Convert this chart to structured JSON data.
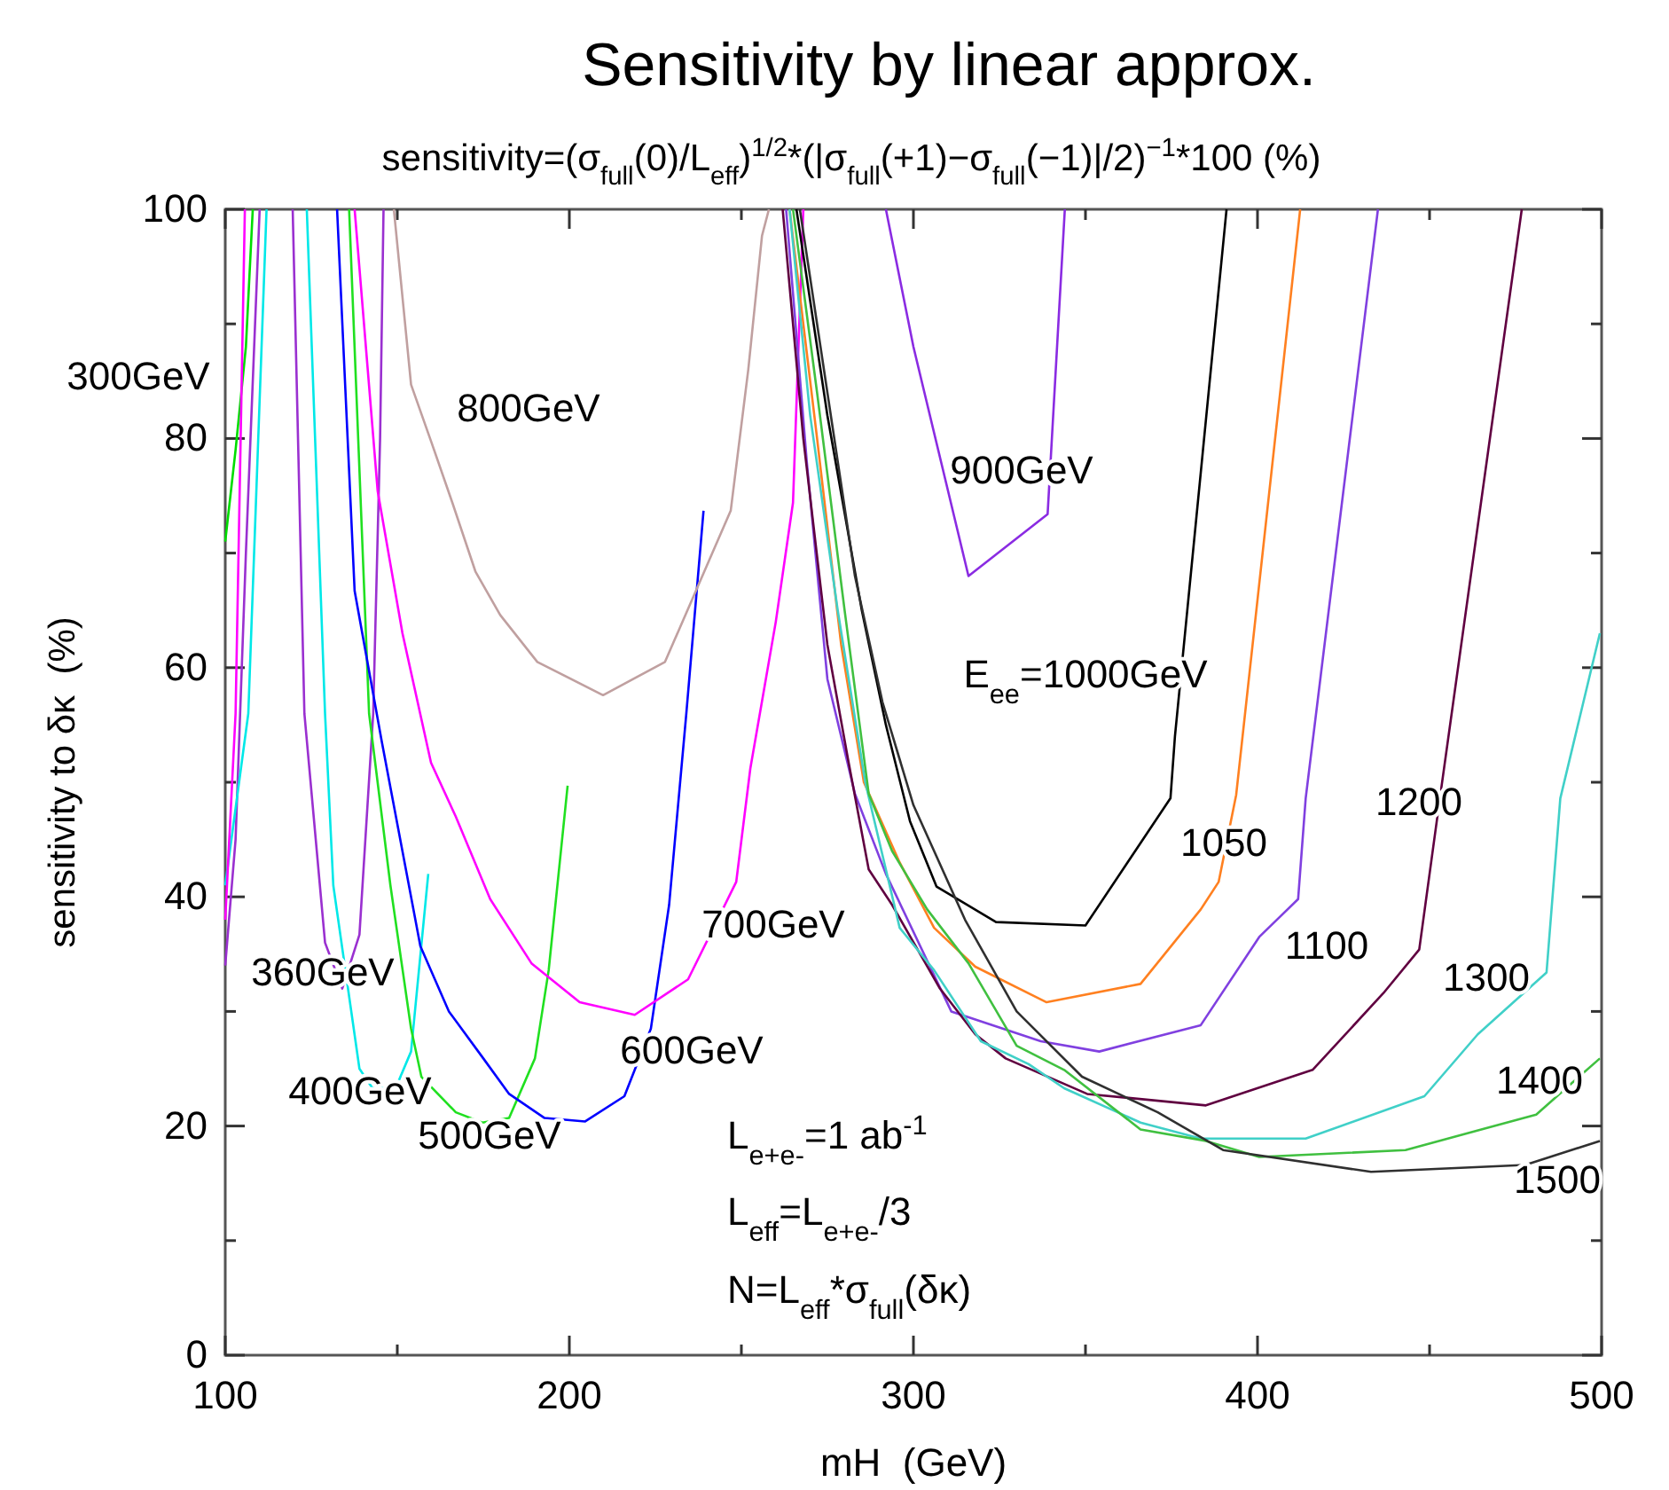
{
  "chart_data": {
    "type": "line",
    "title": "Sensitivity by linear approx.",
    "subtitle": "sensitivity=(σ$_{full}$(0)/L$_{eff}$)$^{1/2}$*(|σ$_{full}$(+1)−σ$_{full}$(−1)|/2)$^{−1}$*100 (%)",
    "xlabel": "mH  (GeV)",
    "ylabel": "sensitivity to δκ  (%)",
    "xlim": [
      100,
      500
    ],
    "ylim": [
      0,
      100
    ],
    "xticks": [
      100,
      {
        "value": 150,
        "label": null
      },
      200,
      {
        "value": 250,
        "label": null
      },
      300,
      {
        "value": 350,
        "label": null
      },
      400,
      {
        "value": 450,
        "label": null
      },
      500
    ],
    "yticks": [
      0,
      {
        "value": 10,
        "label": null
      },
      20,
      {
        "value": 30,
        "label": null
      },
      40,
      {
        "value": 50,
        "label": null
      },
      60,
      {
        "value": 70,
        "label": null
      },
      80,
      {
        "value": 90,
        "label": null
      },
      100
    ],
    "series": [
      {
        "name": "300GeV",
        "color": "#00dd00",
        "x": [
          100,
          103,
          106,
          108
        ],
        "values": [
          71,
          79,
          88,
          100
        ]
      },
      {
        "name": "360GeV",
        "color": "#9a30d0",
        "x": [
          100,
          103,
          106,
          110,
          115,
          119.6,
          123,
          129,
          134,
          139,
          143,
          145,
          146
        ],
        "values": [
          34,
          45,
          70,
          100,
          null,
          100,
          56,
          36,
          32,
          36.7,
          56,
          80,
          100
        ]
      },
      {
        "name": "400GeV",
        "color": "#00e8e8",
        "x": [
          100,
          106.7,
          112,
          118,
          123.7,
          129,
          131.4,
          139,
          142.8,
          149.5,
          154,
          159
        ],
        "values": [
          41,
          56,
          100,
          null,
          100,
          56,
          41,
          25,
          23.3,
          23.3,
          26.5,
          42
        ]
      },
      {
        "name": "500GeV",
        "color": "#20e020",
        "x": [
          136,
          141.8,
          148,
          154,
          157,
          167,
          174.7,
          182.5,
          190,
          194,
          199.5
        ],
        "values": [
          100,
          56,
          41,
          28.5,
          24.3,
          21.2,
          20.3,
          20.7,
          25.9,
          33.6,
          49.7
        ]
      },
      {
        "name": "600GeV",
        "color": "#0000ff",
        "x": [
          132.5,
          137.6,
          145.4,
          156.7,
          165,
          175,
          182.5,
          192.8,
          204.6,
          216,
          223.7,
          229,
          234,
          239
        ],
        "values": [
          100,
          66.7,
          53.7,
          35.7,
          30,
          25.9,
          22.8,
          20.7,
          20.4,
          22.6,
          28.5,
          39.3,
          56,
          73.7
        ]
      },
      {
        "name": "700GeV",
        "color": "#ff00ff",
        "x": [
          100,
          103,
          105.7,
          120,
          137.6,
          144.3,
          151.5,
          159.8,
          167,
          177,
          189,
          203,
          219,
          234.5,
          248.5,
          252.6,
          260,
          265,
          268
        ],
        "values": [
          38,
          56,
          100,
          null,
          100,
          75.4,
          63,
          51.7,
          47,
          39.8,
          34.2,
          30.8,
          29.7,
          32.8,
          41.3,
          51.2,
          64,
          74.4,
          100
        ]
      },
      {
        "name": "800GeV",
        "color": "#c0a0a0",
        "x": [
          149,
          154,
          160,
          166,
          172.7,
          179.9,
          190.7,
          209.8,
          227.8,
          246.9,
          252,
          256,
          258
        ],
        "values": [
          100,
          84.7,
          79.6,
          74.4,
          68.4,
          64.6,
          60.5,
          57.6,
          60.5,
          73.7,
          86,
          97.7,
          100
        ]
      },
      {
        "name": "900GeV",
        "color": "#8a2be2",
        "x": [
          292,
          300,
          308,
          316,
          339,
          344
        ],
        "values": [
          100,
          88,
          78,
          68,
          73.4,
          100
        ]
      },
      {
        "name": "E$_{ee}$=1000GeV",
        "color": "#000000",
        "x": [
          266,
          275,
          285,
          292,
          299,
          306.7,
          324,
          350,
          374.7,
          376,
          391
        ],
        "values": [
          100,
          82,
          65,
          55,
          46.6,
          40.9,
          37.8,
          37.5,
          48.6,
          54,
          100
        ]
      },
      {
        "name": "1050",
        "color": "#ff8020",
        "x": [
          264,
          272,
          279,
          285.6,
          296,
          306,
          318,
          338.7,
          366,
          383.5,
          388.7,
          393.8,
          412.4
        ],
        "values": [
          100,
          80,
          62,
          50,
          43,
          37.3,
          33.9,
          30.8,
          32.4,
          38.9,
          41.3,
          48.9,
          100
        ]
      },
      {
        "name": "1100",
        "color": "#8040e0",
        "x": [
          263,
          269,
          275,
          283,
          292,
          311,
          337,
          354,
          383.5,
          400.5,
          411.8,
          414,
          435
        ],
        "values": [
          100,
          78,
          59,
          49,
          42,
          30,
          27.4,
          26.5,
          28.8,
          36.5,
          39.8,
          48.6,
          100
        ]
      },
      {
        "name": "1200",
        "color": "#600040",
        "x": [
          262,
          268,
          275,
          281,
          287,
          293.8,
          307.7,
          318,
          326.8,
          350.5,
          385,
          416,
          436.6,
          447,
          453,
          476.8
        ],
        "values": [
          100,
          80,
          62,
          52,
          42.4,
          39.3,
          32,
          28,
          25.9,
          22.8,
          21.8,
          24.9,
          31.6,
          35.4,
          48.6,
          100
        ]
      },
      {
        "name": "1300",
        "color": "#40d0c8",
        "x": [
          264,
          270,
          278,
          286,
          296,
          306,
          319.6,
          333.5,
          343.8,
          366,
          383.5,
          414,
          448.5,
          464,
          484,
          488,
          499.5
        ],
        "values": [
          100,
          82,
          65,
          50,
          37.3,
          33.6,
          27.4,
          25.4,
          23.3,
          20.3,
          18.9,
          18.9,
          22.6,
          28,
          33.4,
          48.6,
          63
        ]
      },
      {
        "name": "1400",
        "color": "#40c040",
        "x": [
          265,
          272,
          280,
          287,
          293.8,
          304,
          316,
          330,
          343.8,
          366,
          385,
          400.5,
          443,
          481,
          499.5
        ],
        "values": [
          100,
          84,
          65,
          49,
          44,
          38.9,
          34.2,
          27,
          24.9,
          19.7,
          18.7,
          17.3,
          17.9,
          21,
          25.9
        ]
      },
      {
        "name": "1500",
        "color": "#303030",
        "x": [
          267,
          275,
          283,
          291,
          300,
          315,
          330,
          349,
          371,
          390,
          433,
          477.8,
          499.5
        ],
        "values": [
          100,
          84,
          68,
          57,
          48,
          38,
          30,
          24.3,
          21.2,
          17.9,
          16,
          16.6,
          18.7
        ]
      }
    ],
    "annotations": [
      "L$_{e+e-}$=1 ab$^{-1}$",
      "L$_{eff}$=L$_{e+e-}$/3",
      "N=L$_{eff}$*σ$_{full}$(δκ)"
    ]
  }
}
